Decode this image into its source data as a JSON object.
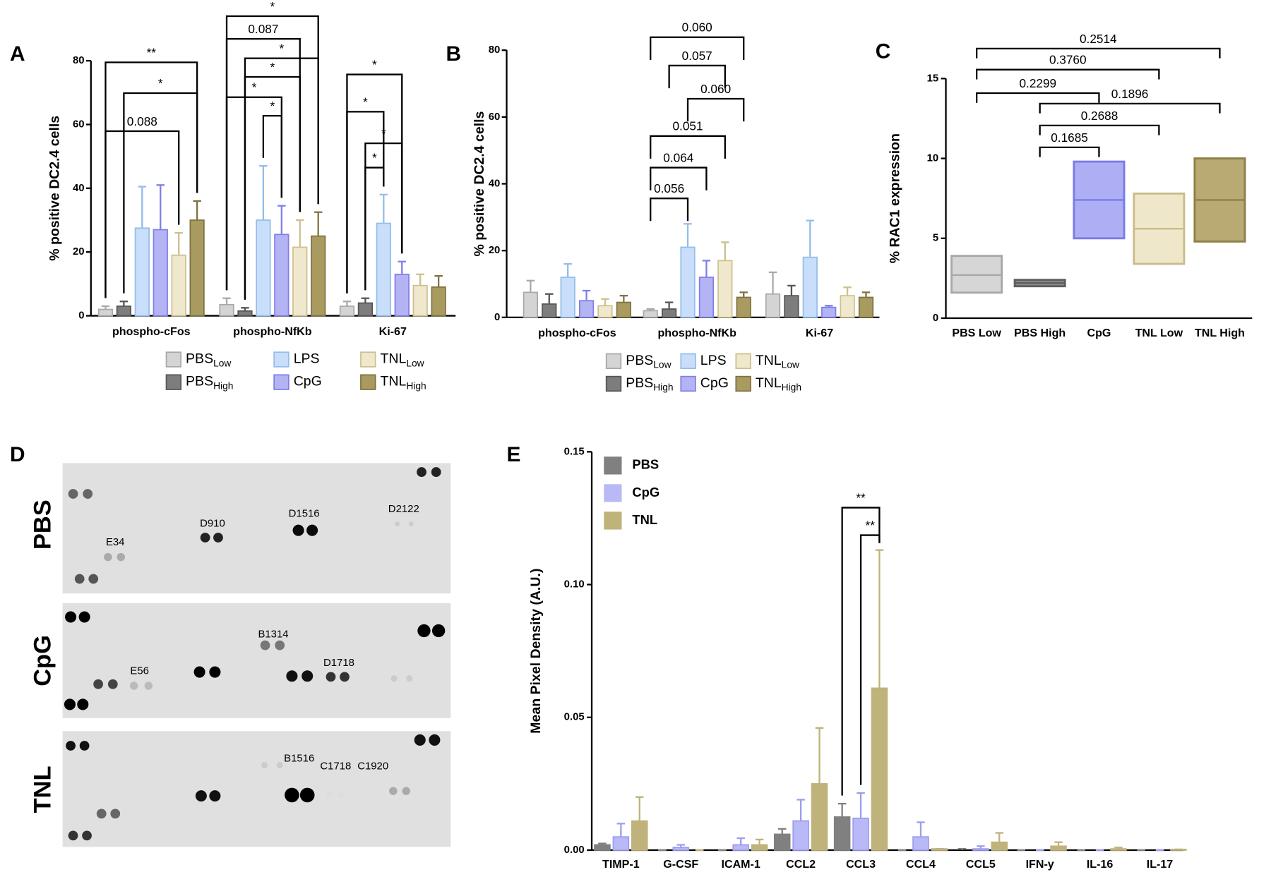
{
  "chart_data": [
    {
      "type": "bar",
      "panel": "A",
      "y_label": "% positive DC2.4 cells",
      "categories": [
        "phospho-cFos",
        "phospho-NfKb",
        "Ki-67"
      ],
      "series": [
        {
          "name": "PBS",
          "name_sub": "Low",
          "color": "#d4d4d4",
          "edgecolor": "#a8a8a8",
          "values": [
            2,
            3.5,
            3
          ],
          "errors": [
            1,
            2,
            1.5
          ]
        },
        {
          "name": "PBS",
          "name_sub": "High",
          "color": "#7d7d7d",
          "edgecolor": "#555555",
          "values": [
            3,
            1.5,
            4
          ],
          "errors": [
            1.5,
            1,
            1.5
          ]
        },
        {
          "name": "LPS",
          "color": "#c8defa",
          "edgecolor": "#94bde8",
          "values": [
            27.5,
            30,
            29
          ],
          "errors": [
            13,
            17,
            9
          ]
        },
        {
          "name": "CpG",
          "color": "#b4b4f5",
          "edgecolor": "#7f7fe6",
          "values": [
            27,
            25.5,
            13
          ],
          "errors": [
            14,
            9,
            4
          ]
        },
        {
          "name": "TNL",
          "name_sub": "Low",
          "color": "#efe8cc",
          "edgecolor": "#cdbf8e",
          "values": [
            19,
            21.5,
            9.5
          ],
          "errors": [
            7,
            8.5,
            3.5
          ]
        },
        {
          "name": "TNL",
          "name_sub": "High",
          "color": "#a99b5f",
          "edgecolor": "#7f7240",
          "values": [
            30,
            25,
            9
          ],
          "errors": [
            6,
            7.5,
            3.5
          ]
        }
      ],
      "ylim": [
        0,
        80
      ],
      "yticks": [
        0,
        20,
        40,
        60,
        80
      ],
      "annotations": [
        {
          "text": "0.088",
          "category": 0,
          "from": 0,
          "to": 4
        },
        {
          "text": "*",
          "category": 0,
          "from": 1,
          "to": 5
        },
        {
          "text": "**",
          "category": 0,
          "from": 0,
          "to": 5
        },
        {
          "text": "*",
          "category": 1,
          "from": 2,
          "to": 3
        },
        {
          "text": "*",
          "category": 1,
          "from": 0,
          "to": 3
        },
        {
          "text": "*",
          "category": 1,
          "from": 1,
          "to": 4
        },
        {
          "text": "*",
          "category": 1,
          "from": 1,
          "to": 5
        },
        {
          "text": "0.087",
          "category": 1,
          "from": 0,
          "to": 4
        },
        {
          "text": "*",
          "category": 1,
          "from": 0,
          "to": 5
        },
        {
          "text": "*",
          "category": 2,
          "from": 1,
          "to": 2
        },
        {
          "text": "*",
          "category": 2,
          "from": 1,
          "to": 3
        },
        {
          "text": "*",
          "category": 2,
          "from": 0,
          "to": 2
        },
        {
          "text": "*",
          "category": 2,
          "from": 0,
          "to": 3
        }
      ]
    },
    {
      "type": "bar",
      "panel": "B",
      "y_label": "% positive DC2.4 cells",
      "categories": [
        "phospho-cFos",
        "phospho-NfKb",
        "Ki-67"
      ],
      "series": [
        {
          "name": "PBS",
          "name_sub": "Low",
          "color": "#d4d4d4",
          "edgecolor": "#a8a8a8",
          "values": [
            7.5,
            2,
            7
          ],
          "errors": [
            3.5,
            0.5,
            6.5
          ]
        },
        {
          "name": "PBS",
          "name_sub": "High",
          "color": "#7d7d7d",
          "edgecolor": "#555555",
          "values": [
            4,
            2.5,
            6.5
          ],
          "errors": [
            3,
            2,
            3
          ]
        },
        {
          "name": "LPS",
          "color": "#c8defa",
          "edgecolor": "#94bde8",
          "values": [
            12,
            21,
            18
          ],
          "errors": [
            4,
            7,
            11
          ]
        },
        {
          "name": "CpG",
          "color": "#b4b4f5",
          "edgecolor": "#7f7fe6",
          "values": [
            5,
            12,
            3
          ],
          "errors": [
            3,
            5,
            0.5
          ]
        },
        {
          "name": "TNL",
          "name_sub": "Low",
          "color": "#efe8cc",
          "edgecolor": "#cdbf8e",
          "values": [
            3.5,
            17,
            6.5
          ],
          "errors": [
            2,
            5.5,
            2.5
          ]
        },
        {
          "name": "TNL",
          "name_sub": "High",
          "color": "#a99b5f",
          "edgecolor": "#7f7240",
          "values": [
            4.5,
            6,
            6
          ],
          "errors": [
            2,
            1.5,
            1.5
          ]
        }
      ],
      "ylim": [
        0,
        80
      ],
      "yticks": [
        0,
        20,
        40,
        60,
        80
      ],
      "annotations": [
        {
          "text": "0.056",
          "category": 1,
          "from": 0,
          "to": 2
        },
        {
          "text": "0.064",
          "category": 1,
          "from": 0,
          "to": 3
        },
        {
          "text": "0.051",
          "category": 1,
          "from": 0,
          "to": 4
        },
        {
          "text": "0.060",
          "category": 1,
          "from": 2,
          "to": 5
        },
        {
          "text": "0.057",
          "category": 1,
          "from": 1,
          "to": 4
        },
        {
          "text": "0.060",
          "category": 1,
          "from": 0,
          "to": 5
        }
      ]
    },
    {
      "type": "floating_bar",
      "panel": "C",
      "y_label": "% RAC1 expression",
      "categories": [
        "PBS Low",
        "PBS High",
        "CpG",
        "TNL Low",
        "TNL High"
      ],
      "low": [
        1.6,
        2.0,
        5.0,
        3.4,
        4.8
      ],
      "high": [
        3.9,
        2.4,
        9.8,
        7.8,
        10.0
      ],
      "mean": [
        2.7,
        2.2,
        7.4,
        5.6,
        7.4
      ],
      "colors": [
        "#d6d6d6",
        "#8a8a8a",
        "#aeaef5",
        "#efe7c9",
        "#b8aa72"
      ],
      "edgecolors": [
        "#a8a8a8",
        "#5e5e5e",
        "#7a7ae8",
        "#c9bc8a",
        "#8e7f45"
      ],
      "ylim": [
        0,
        15
      ],
      "yticks": [
        0,
        5,
        10,
        15
      ],
      "annotations": [
        {
          "text": "0.2514",
          "from": 0,
          "to": 4
        },
        {
          "text": "0.3760",
          "from": 0,
          "to": 3
        },
        {
          "text": "0.2299",
          "from": 0,
          "to": 2
        },
        {
          "text": "0.1896",
          "from": 1,
          "to": 4
        },
        {
          "text": "0.2688",
          "from": 1,
          "to": 3
        },
        {
          "text": "0.1685",
          "from": 1,
          "to": 2
        }
      ]
    },
    {
      "type": "bar",
      "panel": "E",
      "y_label": "Mean Pixel Density (A.U.)",
      "categories": [
        "TIMP-1",
        "G-CSF",
        "ICAM-1",
        "CCL2",
        "CCL3",
        "CCL4",
        "CCL5",
        "IFN-y",
        "IL-16",
        "IL-17"
      ],
      "series": [
        {
          "name": "PBS",
          "color": "#808080",
          "edgecolor": "#808080",
          "values": [
            0.002,
            0,
            0,
            0.006,
            0.0125,
            0,
            0,
            0,
            0,
            0
          ],
          "errors": [
            0.0005,
            0,
            0,
            0.002,
            0.005,
            0,
            0.0005,
            0,
            0,
            0
          ]
        },
        {
          "name": "CpG",
          "color": "#b9b9f7",
          "edgecolor": "#9c9cf2",
          "values": [
            0.005,
            0.001,
            0.002,
            0.011,
            0.012,
            0.005,
            0.0005,
            0,
            0,
            0
          ],
          "errors": [
            0.005,
            0.001,
            0.0025,
            0.008,
            0.0095,
            0.0055,
            0.001,
            0,
            0,
            0
          ]
        },
        {
          "name": "TNL",
          "color": "#bfb27b",
          "edgecolor": "#bfb27b",
          "values": [
            0.011,
            0,
            0.002,
            0.025,
            0.061,
            0.0005,
            0.003,
            0.0015,
            0.0005,
            0.0003
          ],
          "errors": [
            0.009,
            0,
            0.002,
            0.021,
            0.052,
            0,
            0.0035,
            0.0015,
            0.0005,
            0
          ]
        }
      ],
      "ylim": [
        0,
        0.15
      ],
      "yticks": [
        {
          "value": 0,
          "label": "0.00"
        },
        {
          "value": 0.05,
          "label": "0.05"
        },
        {
          "value": 0.1,
          "label": "0.10"
        },
        {
          "value": 0.15,
          "label": "0.15"
        }
      ],
      "annotations": [
        {
          "text": "**",
          "category": 4,
          "from": 0,
          "to": 2
        },
        {
          "text": "**",
          "category": 4,
          "from": 1,
          "to": 2
        }
      ]
    }
  ],
  "blot": {
    "panel": "D",
    "rows": [
      {
        "label": "PBS",
        "spots": [
          "E34",
          "D910",
          "D1516",
          "D2122"
        ]
      },
      {
        "label": "CpG",
        "spots": [
          "B1314",
          "E56",
          "D1718"
        ]
      },
      {
        "label": "TNL",
        "spots": [
          "B1516",
          "C1718",
          "C1920"
        ]
      }
    ]
  }
}
